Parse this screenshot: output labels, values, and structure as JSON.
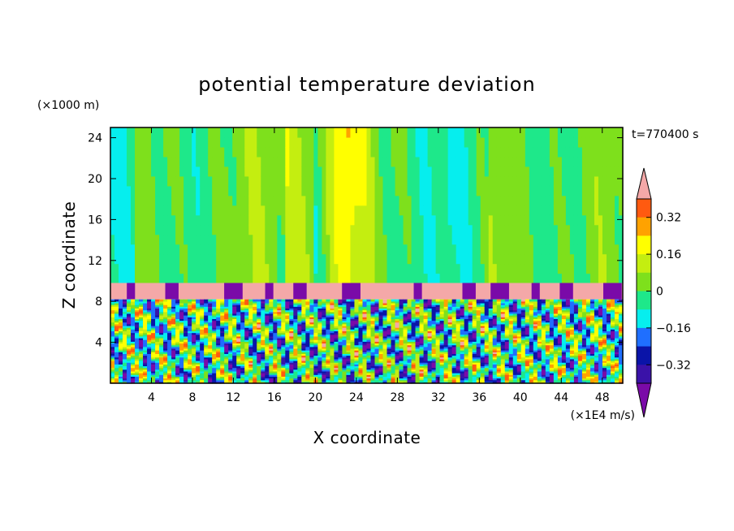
{
  "chart_data": {
    "type": "heatmap",
    "title": "potential temperature deviation",
    "xlabel": "X coordinate",
    "ylabel": "Z coordinate",
    "x_unit": "(×1E4 m/s)",
    "y_unit": "(×1000 m)",
    "time_label": "t=770400 s",
    "xlim": [
      0,
      50
    ],
    "ylim": [
      0,
      25
    ],
    "x_ticks": [
      4,
      8,
      12,
      16,
      20,
      24,
      28,
      32,
      36,
      40,
      44,
      48
    ],
    "y_ticks": [
      4,
      8,
      12,
      16,
      20,
      24
    ],
    "colorbar": {
      "labels": [
        {
          "text": "0.32",
          "value": 0.32
        },
        {
          "text": "0.16",
          "value": 0.16
        },
        {
          "text": "0",
          "value": 0
        },
        {
          "text": "−0.16",
          "value": -0.16
        },
        {
          "text": "−0.32",
          "value": -0.32
        }
      ],
      "levels": [
        {
          "lo": -0.4,
          "hi": -0.32,
          "color": "#3a12a8"
        },
        {
          "lo": -0.32,
          "hi": -0.24,
          "color": "#0a14a8"
        },
        {
          "lo": -0.24,
          "hi": -0.16,
          "color": "#1f6fff"
        },
        {
          "lo": -0.16,
          "hi": -0.08,
          "color": "#06eeee"
        },
        {
          "lo": -0.08,
          "hi": 0.0,
          "color": "#1ee88a"
        },
        {
          "lo": 0.0,
          "hi": 0.08,
          "color": "#7ee01c"
        },
        {
          "lo": 0.08,
          "hi": 0.16,
          "color": "#c4ee10"
        },
        {
          "lo": 0.16,
          "hi": 0.24,
          "color": "#ffff00"
        },
        {
          "lo": 0.24,
          "hi": 0.32,
          "color": "#ffa200"
        },
        {
          "lo": 0.32,
          "hi": 0.4,
          "color": "#ff5a10"
        }
      ],
      "over_color": "#f4a8a8",
      "under_color": "#7a0aa8"
    },
    "regions": {
      "upper_layer_z": [
        9.8,
        25
      ],
      "upper_layer_typical": [
        -0.08,
        0.08
      ],
      "upper_layer_warm_plume_x": [
        22,
        24
      ],
      "upper_layer_warm_plume_value": 0.3,
      "inversion_band_z": [
        8.2,
        9.8
      ],
      "inversion_band_value": 0.45,
      "lower_turbulent_z": [
        0,
        8.2
      ],
      "lower_turbulent_range": [
        -0.4,
        0.4
      ]
    }
  }
}
